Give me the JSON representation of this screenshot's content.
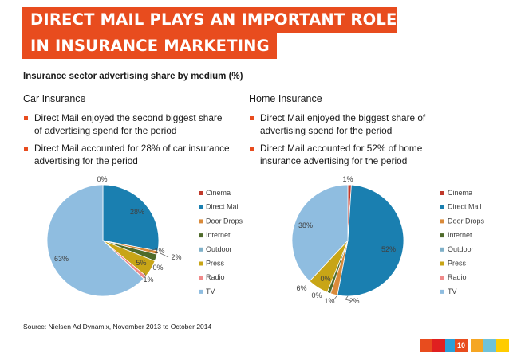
{
  "header": {
    "title_line1": "DIRECT MAIL PLAYS AN IMPORTANT ROLE",
    "title_line2": "IN INSURANCE MARKETING"
  },
  "subtitle": "Insurance sector advertising share by medium (%)",
  "car": {
    "heading": "Car Insurance",
    "bullets": [
      "Direct Mail enjoyed the second biggest share of advertising spend for the period",
      "Direct Mail accounted for 28% of car insurance advertising for the period"
    ]
  },
  "home": {
    "heading": "Home Insurance",
    "bullets": [
      "Direct Mail enjoyed the biggest share of advertising spend for the period",
      "Direct Mail accounted for 52% of home insurance advertising for the period"
    ]
  },
  "chart_data": [
    {
      "type": "pie",
      "title": "Car Insurance",
      "categories": [
        "Cinema",
        "Direct Mail",
        "Door Drops",
        "Internet",
        "Outdoor",
        "Press",
        "Radio",
        "TV"
      ],
      "values": [
        0,
        28,
        1,
        2,
        0,
        5,
        1,
        63
      ],
      "data_labels": [
        "0%",
        "28%",
        "1%",
        "2%",
        "0%",
        "5%",
        "1%",
        "63%"
      ],
      "colors": [
        "#c0392b",
        "#1a7fb0",
        "#d98a3a",
        "#4f6b2b",
        "#7fb0c8",
        "#c8a516",
        "#f08a8a",
        "#8fbde0"
      ],
      "legend": "right"
    },
    {
      "type": "pie",
      "title": "Home Insurance",
      "categories": [
        "Cinema",
        "Direct Mail",
        "Door Drops",
        "Internet",
        "Outdoor",
        "Press",
        "Radio",
        "TV"
      ],
      "values": [
        1,
        52,
        2,
        1,
        0,
        6,
        0,
        38
      ],
      "data_labels": [
        "1%",
        "52%",
        "2%",
        "1%",
        "0%",
        "6%",
        "0%",
        "38%"
      ],
      "colors": [
        "#c0392b",
        "#1a7fb0",
        "#d98a3a",
        "#4f6b2b",
        "#7fb0c8",
        "#c8a516",
        "#f08a8a",
        "#8fbde0"
      ],
      "legend": "right"
    }
  ],
  "source": "Source: Nielsen Ad Dynamix,  November 2013 to October 2014",
  "footer": {
    "strip_colors": [
      "#e84c1e",
      "#e02020",
      "#2aa0d8",
      "#7cb342",
      "#f5a623",
      "#6fc2d8",
      "#ffcc00",
      "#ffffff"
    ],
    "page_number": "10"
  }
}
